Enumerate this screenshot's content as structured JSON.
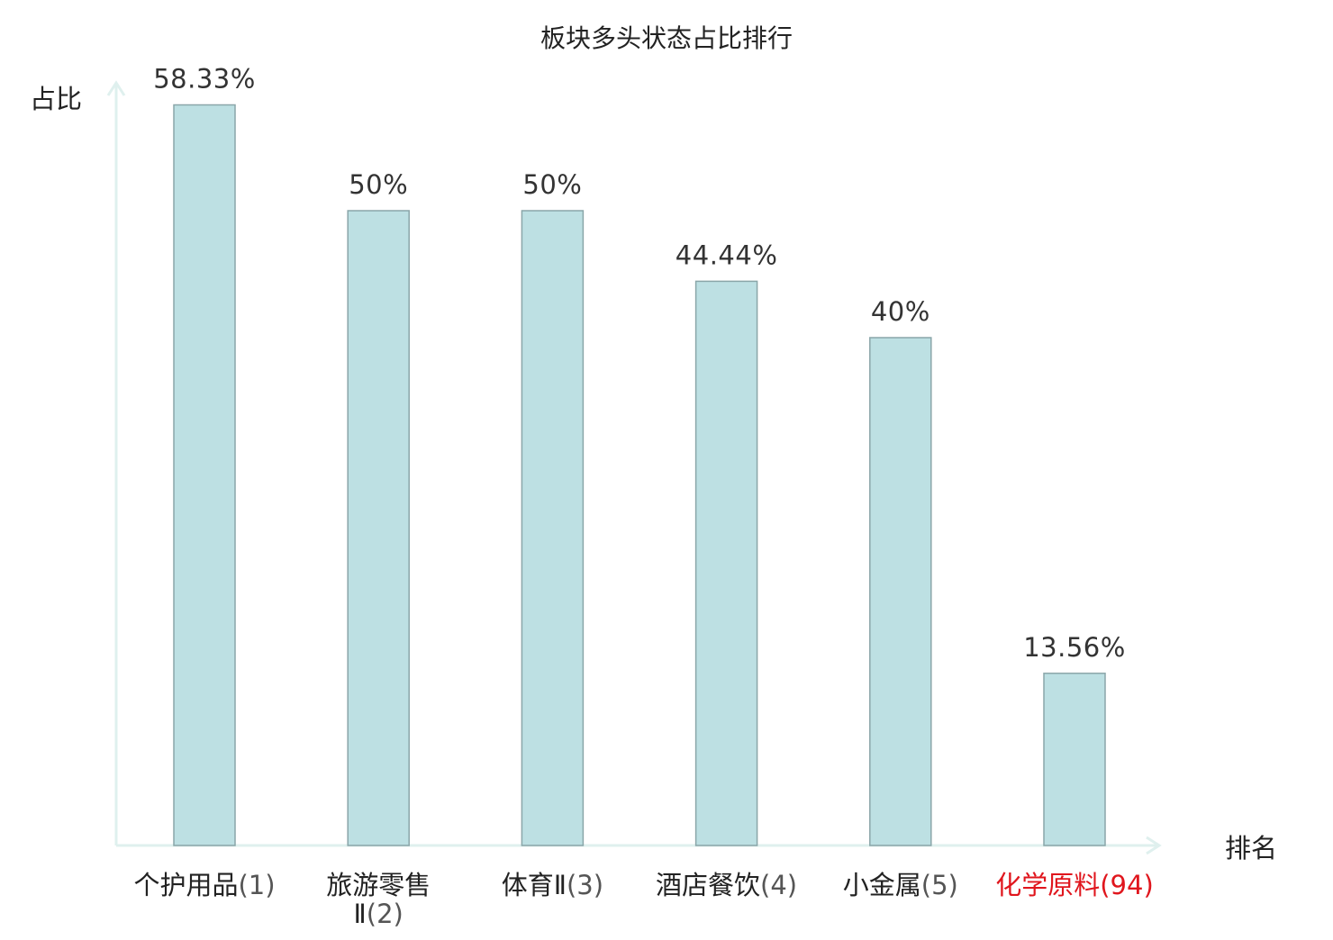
{
  "chart_data": {
    "type": "bar",
    "title": "板块多头状态占比排行",
    "ylabel": "占比",
    "xlabel": "排名",
    "categories": [
      {
        "name": "个护用品",
        "rank": "(1)",
        "highlight": false
      },
      {
        "name": "旅游零售",
        "name_line2": "Ⅱ",
        "rank": "(2)",
        "highlight": false
      },
      {
        "name": "体育Ⅱ",
        "rank": "(3)",
        "highlight": false
      },
      {
        "name": "酒店餐饮",
        "rank": "(4)",
        "highlight": false
      },
      {
        "name": "小金属",
        "rank": "(5)",
        "highlight": false
      },
      {
        "name": "化学原料",
        "rank": "(94)",
        "highlight": true
      }
    ],
    "values": [
      58.33,
      50,
      50,
      44.44,
      40,
      13.56
    ],
    "value_labels": [
      "58.33%",
      "50%",
      "50%",
      "44.44%",
      "40%",
      "13.56%"
    ],
    "ylim": [
      0,
      60
    ],
    "grid": false,
    "colors": {
      "bar_fill": "#bde0e3",
      "bar_stroke": "#8aa6a9",
      "axis": "#dff0ee",
      "highlight": "#e0161d",
      "text": "#222222",
      "value_text": "#333333",
      "rank_text": "#555555"
    }
  }
}
